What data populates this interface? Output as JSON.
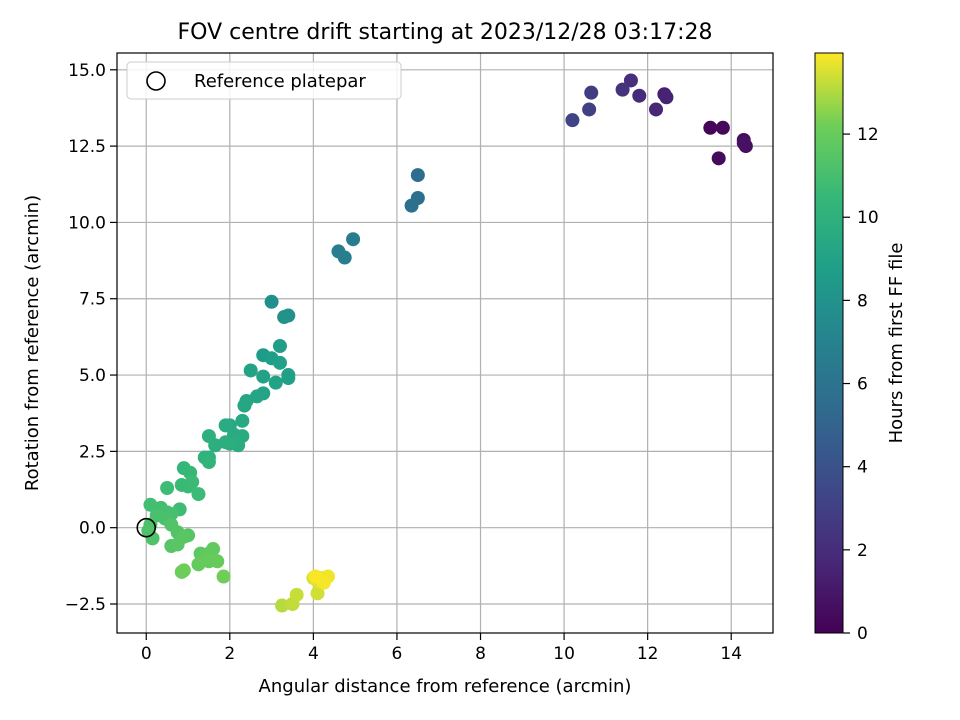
{
  "chart_data": {
    "type": "scatter",
    "title": "FOV centre drift starting at 2023/12/28 03:17:28",
    "xlabel": "Angular distance from reference (arcmin)",
    "ylabel": "Rotation from reference (arcmin)",
    "xlim": [
      -0.7,
      15.0
    ],
    "ylim": [
      -3.45,
      15.55
    ],
    "xticks": [
      0,
      2,
      4,
      6,
      8,
      10,
      12,
      14
    ],
    "xtick_labels": [
      "0",
      "2",
      "4",
      "6",
      "8",
      "10",
      "12",
      "14"
    ],
    "yticks": [
      -2.5,
      0.0,
      2.5,
      5.0,
      7.5,
      10.0,
      12.5,
      15.0
    ],
    "ytick_labels": [
      "−2.5",
      "0.0",
      "2.5",
      "5.0",
      "7.5",
      "10.0",
      "12.5",
      "15.0"
    ],
    "grid": true,
    "legend": {
      "placement": "top-left",
      "entries": [
        {
          "label": "Reference platepar",
          "marker": "open-circle"
        }
      ]
    },
    "reference_point": {
      "x": 0,
      "y": 0
    },
    "colorbar": {
      "label": "Hours from first FF file",
      "colormap": "viridis",
      "range": [
        0,
        13.95
      ],
      "ticks": [
        0,
        2,
        4,
        6,
        8,
        10,
        12
      ],
      "tick_labels": [
        "0",
        "2",
        "4",
        "6",
        "8",
        "10",
        "12"
      ]
    },
    "points": [
      {
        "x": 13.5,
        "y": 13.1,
        "h": 0.2
      },
      {
        "x": 13.8,
        "y": 13.1,
        "h": 0.3
      },
      {
        "x": 13.7,
        "y": 12.1,
        "h": 0.4
      },
      {
        "x": 14.3,
        "y": 12.7,
        "h": 0.5
      },
      {
        "x": 14.35,
        "y": 12.5,
        "h": 0.6
      },
      {
        "x": 14.3,
        "y": 12.6,
        "h": 0.7
      },
      {
        "x": 12.4,
        "y": 14.2,
        "h": 1.4
      },
      {
        "x": 12.45,
        "y": 14.1,
        "h": 1.5
      },
      {
        "x": 12.2,
        "y": 13.7,
        "h": 1.7
      },
      {
        "x": 11.8,
        "y": 14.15,
        "h": 1.9
      },
      {
        "x": 11.6,
        "y": 14.65,
        "h": 2.1
      },
      {
        "x": 11.4,
        "y": 14.35,
        "h": 2.3
      },
      {
        "x": 10.65,
        "y": 14.25,
        "h": 2.8
      },
      {
        "x": 10.6,
        "y": 13.7,
        "h": 3.0
      },
      {
        "x": 10.2,
        "y": 13.35,
        "h": 3.2
      },
      {
        "x": 6.5,
        "y": 11.55,
        "h": 5.6
      },
      {
        "x": 6.5,
        "y": 10.8,
        "h": 5.7
      },
      {
        "x": 6.35,
        "y": 10.55,
        "h": 5.8
      },
      {
        "x": 4.95,
        "y": 9.45,
        "h": 6.6
      },
      {
        "x": 4.6,
        "y": 9.05,
        "h": 6.7
      },
      {
        "x": 4.75,
        "y": 8.85,
        "h": 6.8
      },
      {
        "x": 3.0,
        "y": 7.4,
        "h": 7.8
      },
      {
        "x": 3.4,
        "y": 6.95,
        "h": 7.9
      },
      {
        "x": 3.3,
        "y": 6.9,
        "h": 8.0
      },
      {
        "x": 2.8,
        "y": 5.65,
        "h": 8.6
      },
      {
        "x": 3.0,
        "y": 5.55,
        "h": 8.7
      },
      {
        "x": 3.2,
        "y": 5.95,
        "h": 8.8
      },
      {
        "x": 3.2,
        "y": 5.4,
        "h": 8.9
      },
      {
        "x": 2.5,
        "y": 5.15,
        "h": 9.0
      },
      {
        "x": 2.8,
        "y": 4.95,
        "h": 9.0
      },
      {
        "x": 3.4,
        "y": 5.0,
        "h": 8.95
      },
      {
        "x": 3.4,
        "y": 4.9,
        "h": 8.85
      },
      {
        "x": 3.1,
        "y": 4.75,
        "h": 9.05
      },
      {
        "x": 2.8,
        "y": 4.4,
        "h": 9.1
      },
      {
        "x": 2.65,
        "y": 4.3,
        "h": 9.2
      },
      {
        "x": 2.4,
        "y": 4.15,
        "h": 9.25
      },
      {
        "x": 2.35,
        "y": 4.0,
        "h": 9.3
      },
      {
        "x": 2.3,
        "y": 3.5,
        "h": 9.4
      },
      {
        "x": 2.0,
        "y": 3.35,
        "h": 9.5
      },
      {
        "x": 1.9,
        "y": 3.35,
        "h": 9.6
      },
      {
        "x": 2.1,
        "y": 3.05,
        "h": 9.6
      },
      {
        "x": 2.3,
        "y": 3.0,
        "h": 9.55
      },
      {
        "x": 2.15,
        "y": 2.85,
        "h": 9.65
      },
      {
        "x": 2.2,
        "y": 2.7,
        "h": 9.7
      },
      {
        "x": 2.0,
        "y": 2.75,
        "h": 9.75
      },
      {
        "x": 1.65,
        "y": 2.7,
        "h": 9.8
      },
      {
        "x": 1.9,
        "y": 2.8,
        "h": 9.85
      },
      {
        "x": 1.5,
        "y": 3.0,
        "h": 9.9
      },
      {
        "x": 1.5,
        "y": 2.3,
        "h": 10.0
      },
      {
        "x": 1.4,
        "y": 2.3,
        "h": 10.1
      },
      {
        "x": 1.5,
        "y": 2.15,
        "h": 10.2
      },
      {
        "x": 0.9,
        "y": 1.95,
        "h": 10.4
      },
      {
        "x": 1.05,
        "y": 1.8,
        "h": 10.5
      },
      {
        "x": 0.85,
        "y": 1.4,
        "h": 10.6
      },
      {
        "x": 1.0,
        "y": 1.35,
        "h": 10.6
      },
      {
        "x": 1.1,
        "y": 1.5,
        "h": 10.65
      },
      {
        "x": 1.25,
        "y": 1.1,
        "h": 10.7
      },
      {
        "x": 0.5,
        "y": 1.3,
        "h": 10.75
      },
      {
        "x": 0.8,
        "y": 0.6,
        "h": 10.8
      },
      {
        "x": 0.1,
        "y": 0.75,
        "h": 10.9
      },
      {
        "x": 0.35,
        "y": 0.65,
        "h": 10.95
      },
      {
        "x": 0.5,
        "y": 0.5,
        "h": 11.0
      },
      {
        "x": 0.6,
        "y": 0.45,
        "h": 11.05
      },
      {
        "x": 0.25,
        "y": 0.4,
        "h": 11.1
      },
      {
        "x": 0.45,
        "y": 0.3,
        "h": 11.15
      },
      {
        "x": 0.1,
        "y": 0.1,
        "h": 11.2
      },
      {
        "x": 0.05,
        "y": -0.1,
        "h": 11.25
      },
      {
        "x": 0.15,
        "y": -0.35,
        "h": 11.3
      },
      {
        "x": 0.6,
        "y": 0.1,
        "h": 11.35
      },
      {
        "x": 0.75,
        "y": -0.15,
        "h": 11.4
      },
      {
        "x": 1.0,
        "y": -0.25,
        "h": 11.45
      },
      {
        "x": 0.6,
        "y": -0.6,
        "h": 11.5
      },
      {
        "x": 0.75,
        "y": -0.55,
        "h": 11.55
      },
      {
        "x": 0.9,
        "y": -0.3,
        "h": 11.6
      },
      {
        "x": 1.3,
        "y": -0.85,
        "h": 11.7
      },
      {
        "x": 1.5,
        "y": -0.85,
        "h": 11.75
      },
      {
        "x": 1.6,
        "y": -0.7,
        "h": 11.8
      },
      {
        "x": 1.4,
        "y": -1.0,
        "h": 11.85
      },
      {
        "x": 1.25,
        "y": -1.2,
        "h": 11.9
      },
      {
        "x": 1.5,
        "y": -1.1,
        "h": 11.95
      },
      {
        "x": 1.7,
        "y": -1.1,
        "h": 12.0
      },
      {
        "x": 0.85,
        "y": -1.45,
        "h": 12.1
      },
      {
        "x": 0.9,
        "y": -1.4,
        "h": 12.15
      },
      {
        "x": 1.85,
        "y": -1.6,
        "h": 12.2
      },
      {
        "x": 3.25,
        "y": -2.55,
        "h": 13.1
      },
      {
        "x": 3.5,
        "y": -2.5,
        "h": 13.2
      },
      {
        "x": 3.6,
        "y": -2.2,
        "h": 13.3
      },
      {
        "x": 4.1,
        "y": -2.15,
        "h": 13.4
      },
      {
        "x": 4.0,
        "y": -1.65,
        "h": 13.5
      },
      {
        "x": 4.1,
        "y": -1.75,
        "h": 13.6
      },
      {
        "x": 4.2,
        "y": -1.65,
        "h": 13.7
      },
      {
        "x": 4.35,
        "y": -1.6,
        "h": 13.8
      },
      {
        "x": 4.25,
        "y": -1.8,
        "h": 13.85
      },
      {
        "x": 4.05,
        "y": -1.6,
        "h": 13.9
      }
    ]
  }
}
